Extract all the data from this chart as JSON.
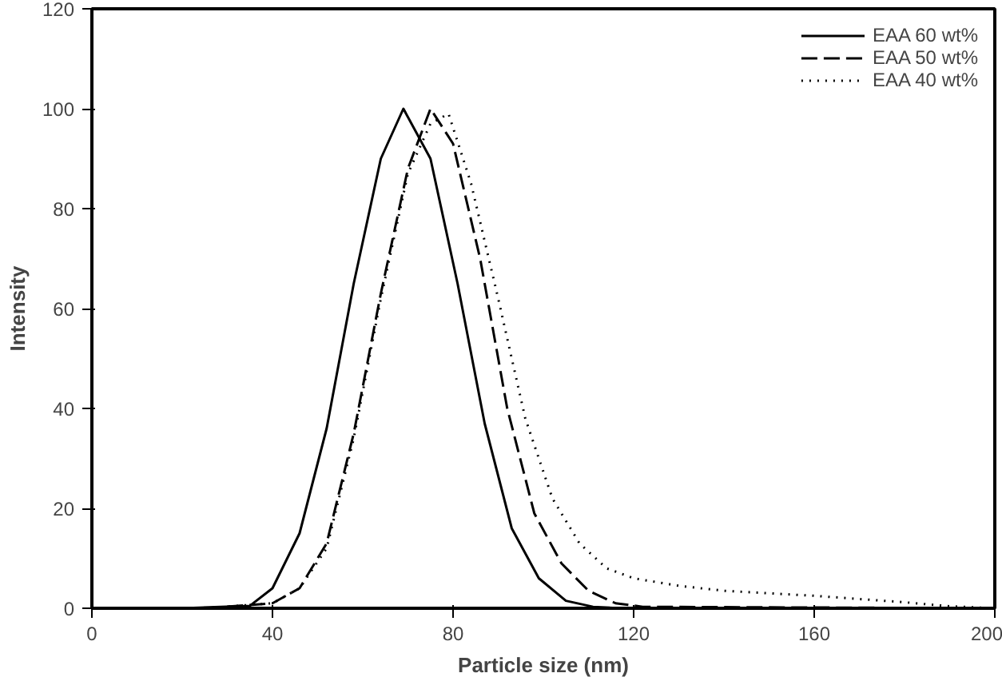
{
  "chart_data": {
    "type": "line",
    "xlabel": "Particle size (nm)",
    "ylabel": "Intensity",
    "xlim": [
      0,
      200
    ],
    "ylim": [
      0,
      120
    ],
    "xticks": [
      0,
      40,
      80,
      120,
      160,
      200
    ],
    "yticks": [
      0,
      20,
      40,
      60,
      80,
      100,
      120
    ],
    "grid": false,
    "legend": "top right",
    "marker": "none",
    "series": [
      {
        "name": "EAA 60 wt%",
        "color": "#000000",
        "line_style": "solid",
        "x": [
          20,
          35,
          40,
          46,
          52,
          58,
          64,
          69,
          75,
          81,
          87,
          93,
          99,
          105,
          111,
          117,
          200
        ],
        "values": [
          0,
          0.5,
          4,
          15,
          36,
          65,
          90,
          100,
          90,
          65,
          37,
          16,
          6,
          1.5,
          0.3,
          0,
          0
        ]
      },
      {
        "name": "EAA 50 wt%",
        "color": "#000000",
        "line_style": "dashed",
        "x": [
          25,
          40,
          46,
          52,
          58,
          64,
          70,
          75,
          80,
          86,
          92,
          98,
          104,
          110,
          116,
          122,
          200
        ],
        "values": [
          0,
          1,
          4,
          13,
          35,
          63,
          88,
          100,
          93,
          70,
          40,
          19,
          9,
          3.5,
          1,
          0.3,
          0
        ]
      },
      {
        "name": "EAA 40 wt%",
        "color": "#000000",
        "line_style": "dotted",
        "x": [
          25,
          40,
          46,
          52,
          58,
          64,
          70,
          75,
          79,
          84,
          90,
          96,
          102,
          108,
          114,
          120,
          130,
          140,
          160,
          180,
          190,
          200
        ],
        "values": [
          0,
          1,
          4,
          12,
          34,
          62,
          87,
          97,
          99,
          85,
          62,
          38,
          22,
          13,
          8,
          6,
          4.5,
          3.5,
          2.5,
          1.2,
          0.4,
          0
        ]
      }
    ]
  }
}
